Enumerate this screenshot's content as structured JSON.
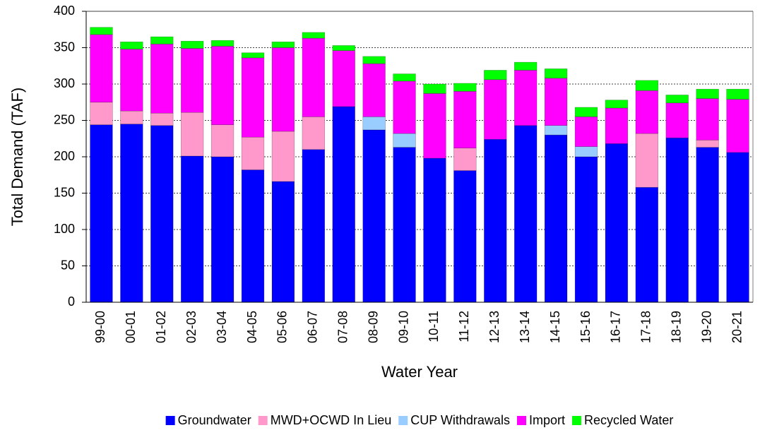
{
  "chart_data": {
    "type": "stacked_bar",
    "x_label": "Water Year",
    "y_label": "Total Demand (TAF)",
    "categories": [
      "99-00",
      "00-01",
      "01-02",
      "02-03",
      "03-04",
      "04-05",
      "05-06",
      "06-07",
      "07-08",
      "08-09",
      "09-10",
      "10-11",
      "11-12",
      "12-13",
      "13-14",
      "14-15",
      "15-16",
      "16-17",
      "17-18",
      "18-19",
      "19-20",
      "20-21"
    ],
    "series": [
      {
        "name": "Groundwater",
        "color": "#0000ff",
        "values": [
          244,
          245,
          243,
          201,
          200,
          182,
          166,
          210,
          269,
          237,
          213,
          198,
          181,
          224,
          243,
          230,
          200,
          218,
          158,
          226,
          213,
          206
        ]
      },
      {
        "name": "MWD+OCWD In Lieu",
        "color": "#ff99cc",
        "values": [
          31,
          18,
          17,
          60,
          44,
          45,
          69,
          45,
          0,
          0,
          0,
          0,
          31,
          0,
          0,
          0,
          0,
          0,
          74,
          0,
          10,
          0
        ]
      },
      {
        "name": "CUP Withdrawals",
        "color": "#99ccff",
        "values": [
          0,
          0,
          0,
          0,
          0,
          0,
          0,
          0,
          0,
          18,
          19,
          0,
          0,
          0,
          0,
          13,
          14,
          0,
          0,
          0,
          0,
          0
        ]
      },
      {
        "name": "Import",
        "color": "#ff00ff",
        "values": [
          93,
          85,
          95,
          88,
          108,
          109,
          115,
          108,
          77,
          73,
          72,
          89,
          78,
          82,
          76,
          65,
          41,
          49,
          59,
          48,
          57,
          73
        ]
      },
      {
        "name": "Recycled Water",
        "color": "#00ff00",
        "values": [
          10,
          10,
          10,
          10,
          8,
          7,
          8,
          8,
          7,
          10,
          10,
          13,
          11,
          13,
          11,
          13,
          13,
          11,
          14,
          11,
          13,
          14
        ]
      }
    ],
    "ylim": [
      0,
      400
    ],
    "yticks": [
      0,
      50,
      100,
      150,
      200,
      250,
      300,
      350,
      400
    ],
    "grid": true,
    "legend": "bottom"
  }
}
